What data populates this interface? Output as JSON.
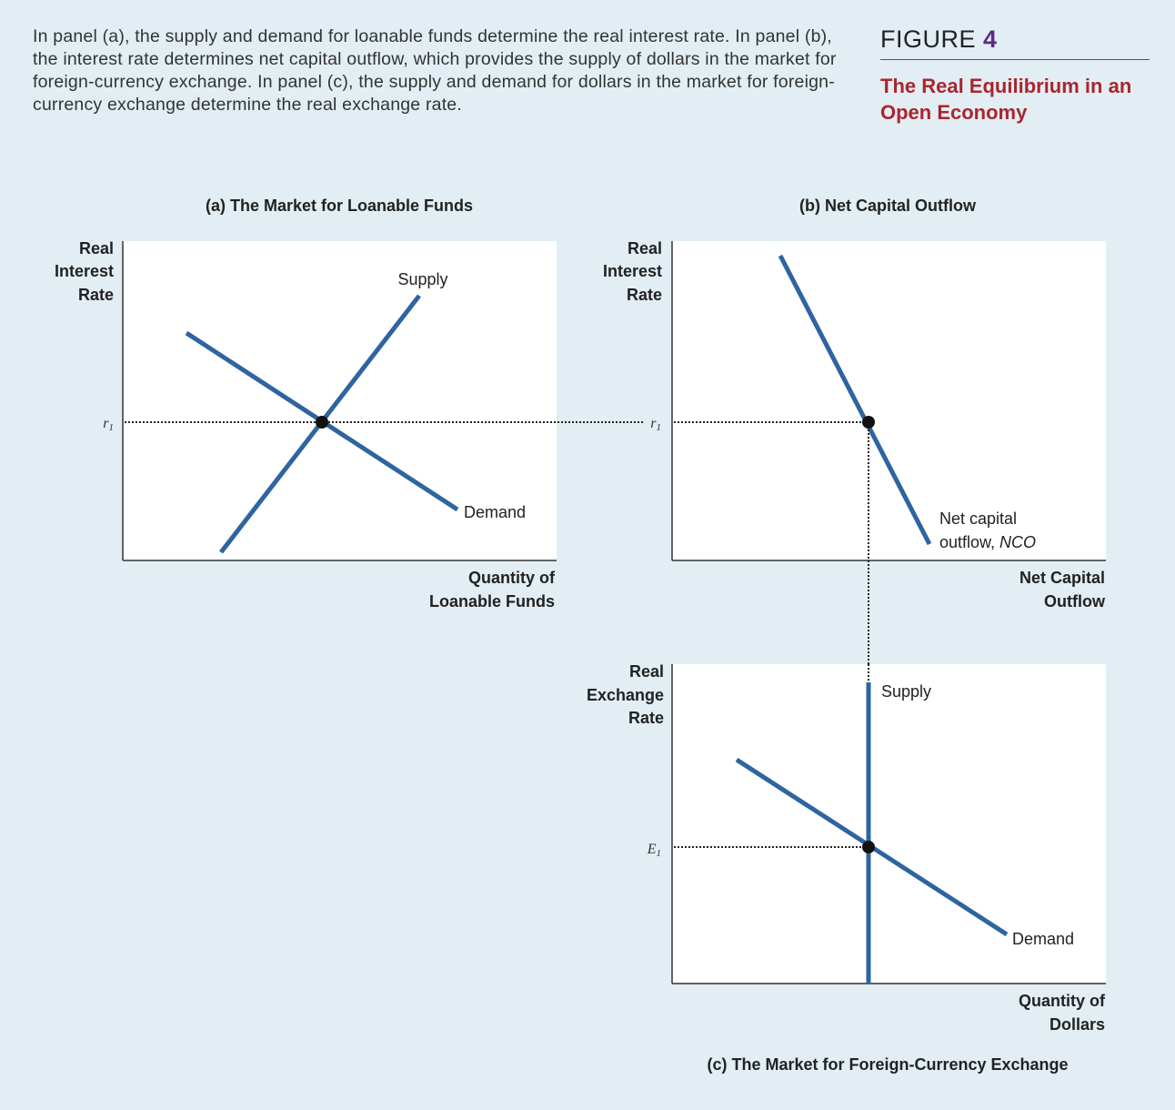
{
  "caption": "In panel (a), the supply and demand for loanable funds determine the real interest rate. In panel (b), the interest rate determines net capital outflow, which provides the supply of dollars in the market for foreign-currency exchange. In panel (c), the supply and demand for dollars in the market for foreign-currency exchange determine the real exchange rate.",
  "figure": {
    "label": "FIGURE",
    "number": "4",
    "title": "The Real Equilibrium in an Open Economy"
  },
  "colors": {
    "curve": "#2e64a0",
    "background": "#e2eef3",
    "title": "#a8262f",
    "figure_number": "#5a2d82"
  },
  "panel_a": {
    "title": "(a) The Market for Loanable Funds",
    "ylabel": [
      "Real",
      "Interest",
      "Rate"
    ],
    "xlabel": [
      "Quantity of",
      "Loanable Funds"
    ],
    "supply_label": "Supply",
    "demand_label": "Demand",
    "r1": "r",
    "r1_sub": "1"
  },
  "panel_b": {
    "title": "(b) Net Capital Outflow",
    "ylabel": [
      "Real",
      "Interest",
      "Rate"
    ],
    "xlabel": [
      "Net Capital",
      "Outflow"
    ],
    "curve_label": [
      "Net capital",
      "outflow, "
    ],
    "curve_label_italic": "NCO",
    "r1": "r",
    "r1_sub": "1"
  },
  "panel_c": {
    "title": "(c) The Market for Foreign-Currency Exchange",
    "ylabel": [
      "Real",
      "Exchange",
      "Rate"
    ],
    "xlabel": [
      "Quantity of",
      "Dollars"
    ],
    "supply_label": "Supply",
    "demand_label": "Demand",
    "e1": "E",
    "e1_sub": "1"
  }
}
